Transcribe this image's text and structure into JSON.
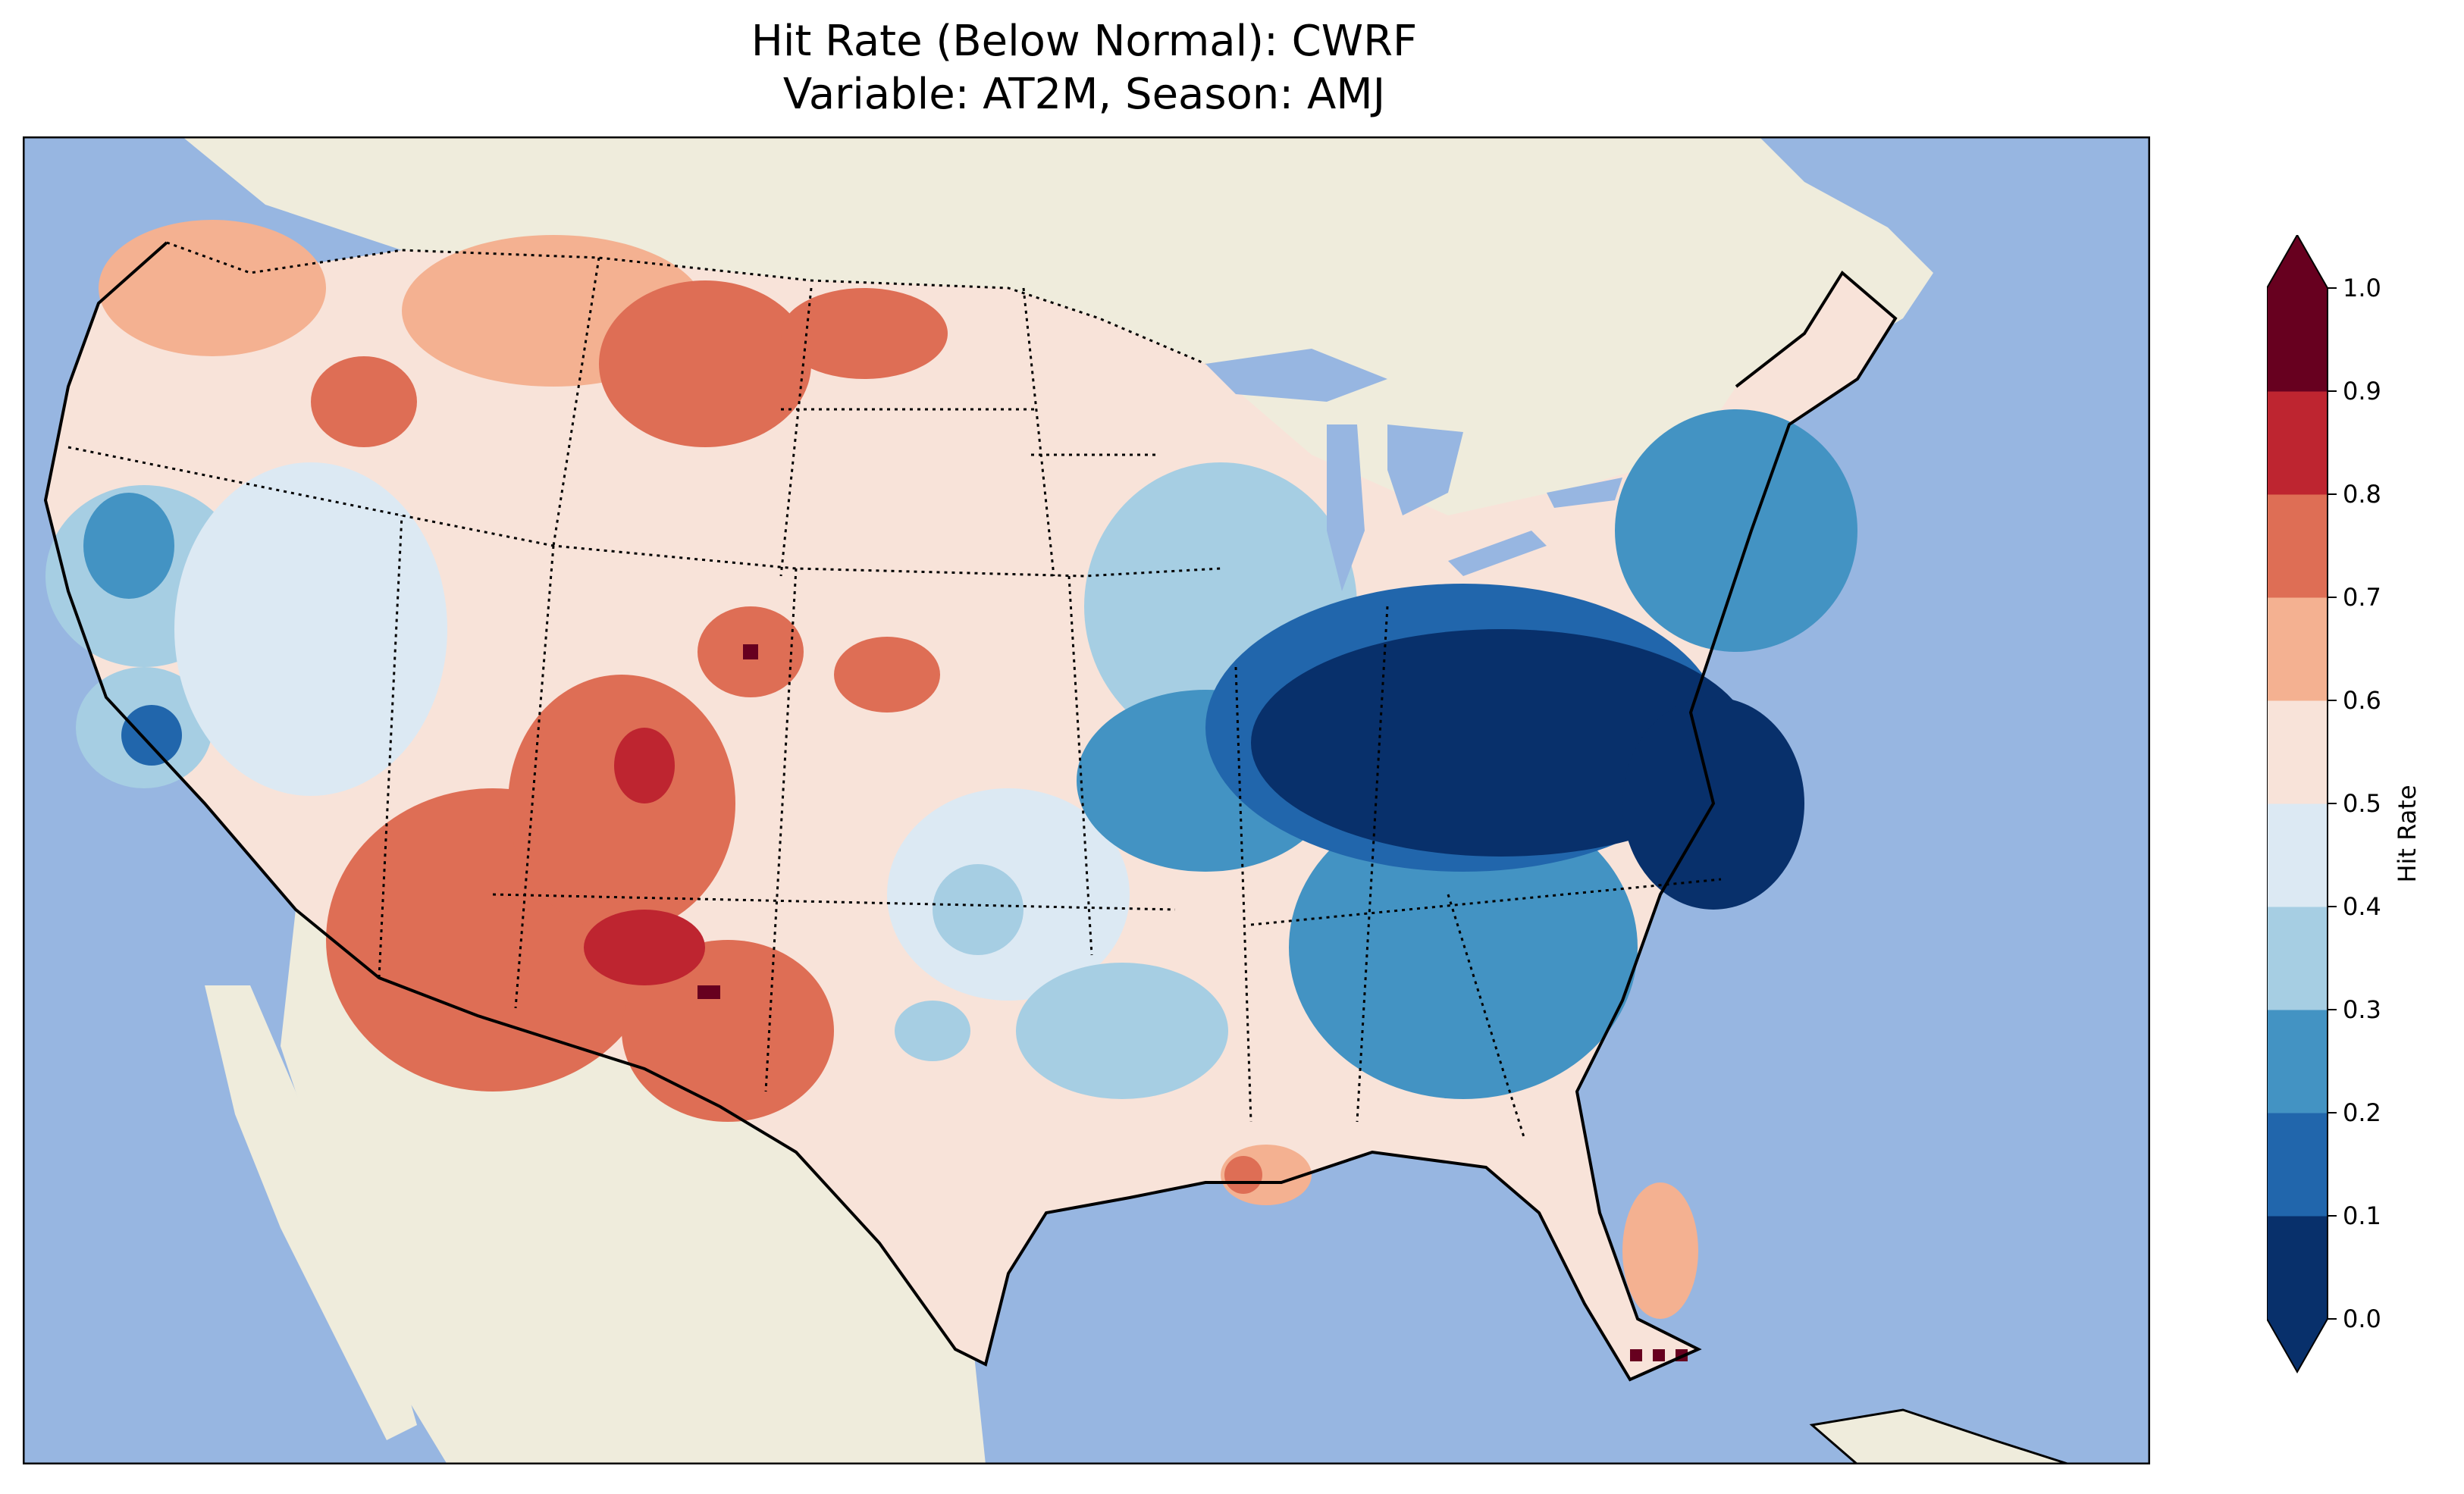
{
  "title": {
    "line1": "Hit Rate (Below Normal): CWRF",
    "line2": "Variable: AT2M, Season: AMJ"
  },
  "map": {
    "type": "choropleth-raster",
    "region": "Contiguous United States",
    "colors": {
      "ocean": "#97b6e1",
      "land": "#efecdc",
      "border": "#000000"
    }
  },
  "colorbar": {
    "label": "Hit Rate",
    "ticks": [
      "0.0",
      "0.1",
      "0.2",
      "0.3",
      "0.4",
      "0.5",
      "0.6",
      "0.7",
      "0.8",
      "0.9",
      "1.0"
    ],
    "extend": "both",
    "colors": [
      "#053061",
      "#2166ac",
      "#4393c3",
      "#92c5de",
      "#d1e5f0",
      "#f7f7f7",
      "#fddbc7",
      "#f4a582",
      "#d6604d",
      "#b2182b",
      "#67001f"
    ],
    "bin_colors": [
      "#08306b",
      "#2166ac",
      "#4393c3",
      "#a6cee3",
      "#dce9f3",
      "#f8e3d9",
      "#f4b191",
      "#de6e55",
      "#be2530",
      "#67001f"
    ]
  }
}
